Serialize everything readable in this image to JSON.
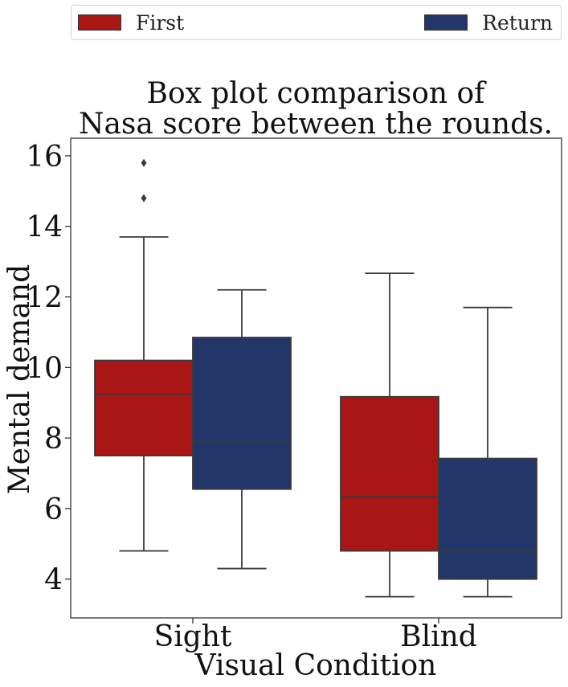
{
  "chart_data": {
    "type": "box",
    "title_lines": [
      "Box plot comparison of",
      "Nasa score between the rounds."
    ],
    "xlabel": "Visual Condition",
    "ylabel": "Mental demand",
    "categories": [
      "Sight",
      "Blind"
    ],
    "ylim": [
      2.9,
      16.5
    ],
    "yticks": [
      4,
      6,
      8,
      10,
      12,
      14,
      16
    ],
    "legend_position": "top",
    "series": [
      {
        "name": "First",
        "color": "#a81616",
        "boxes": [
          {
            "category": "Sight",
            "whisker_low": 4.8,
            "q1": 7.5,
            "median": 9.25,
            "q3": 10.2,
            "whisker_high": 13.7,
            "outliers": [
              14.8,
              15.8
            ]
          },
          {
            "category": "Blind",
            "whisker_low": 3.5,
            "q1": 4.8,
            "median": 6.33,
            "q3": 9.17,
            "whisker_high": 12.67,
            "outliers": []
          }
        ]
      },
      {
        "name": "Return",
        "color": "#233669",
        "boxes": [
          {
            "category": "Sight",
            "whisker_low": 4.3,
            "q1": 6.55,
            "median": 7.9,
            "q3": 10.85,
            "whisker_high": 12.2,
            "outliers": []
          },
          {
            "category": "Blind",
            "whisker_low": 3.5,
            "q1": 4.0,
            "median": 4.8,
            "q3": 7.42,
            "whisker_high": 11.7,
            "outliers": []
          }
        ]
      }
    ]
  }
}
